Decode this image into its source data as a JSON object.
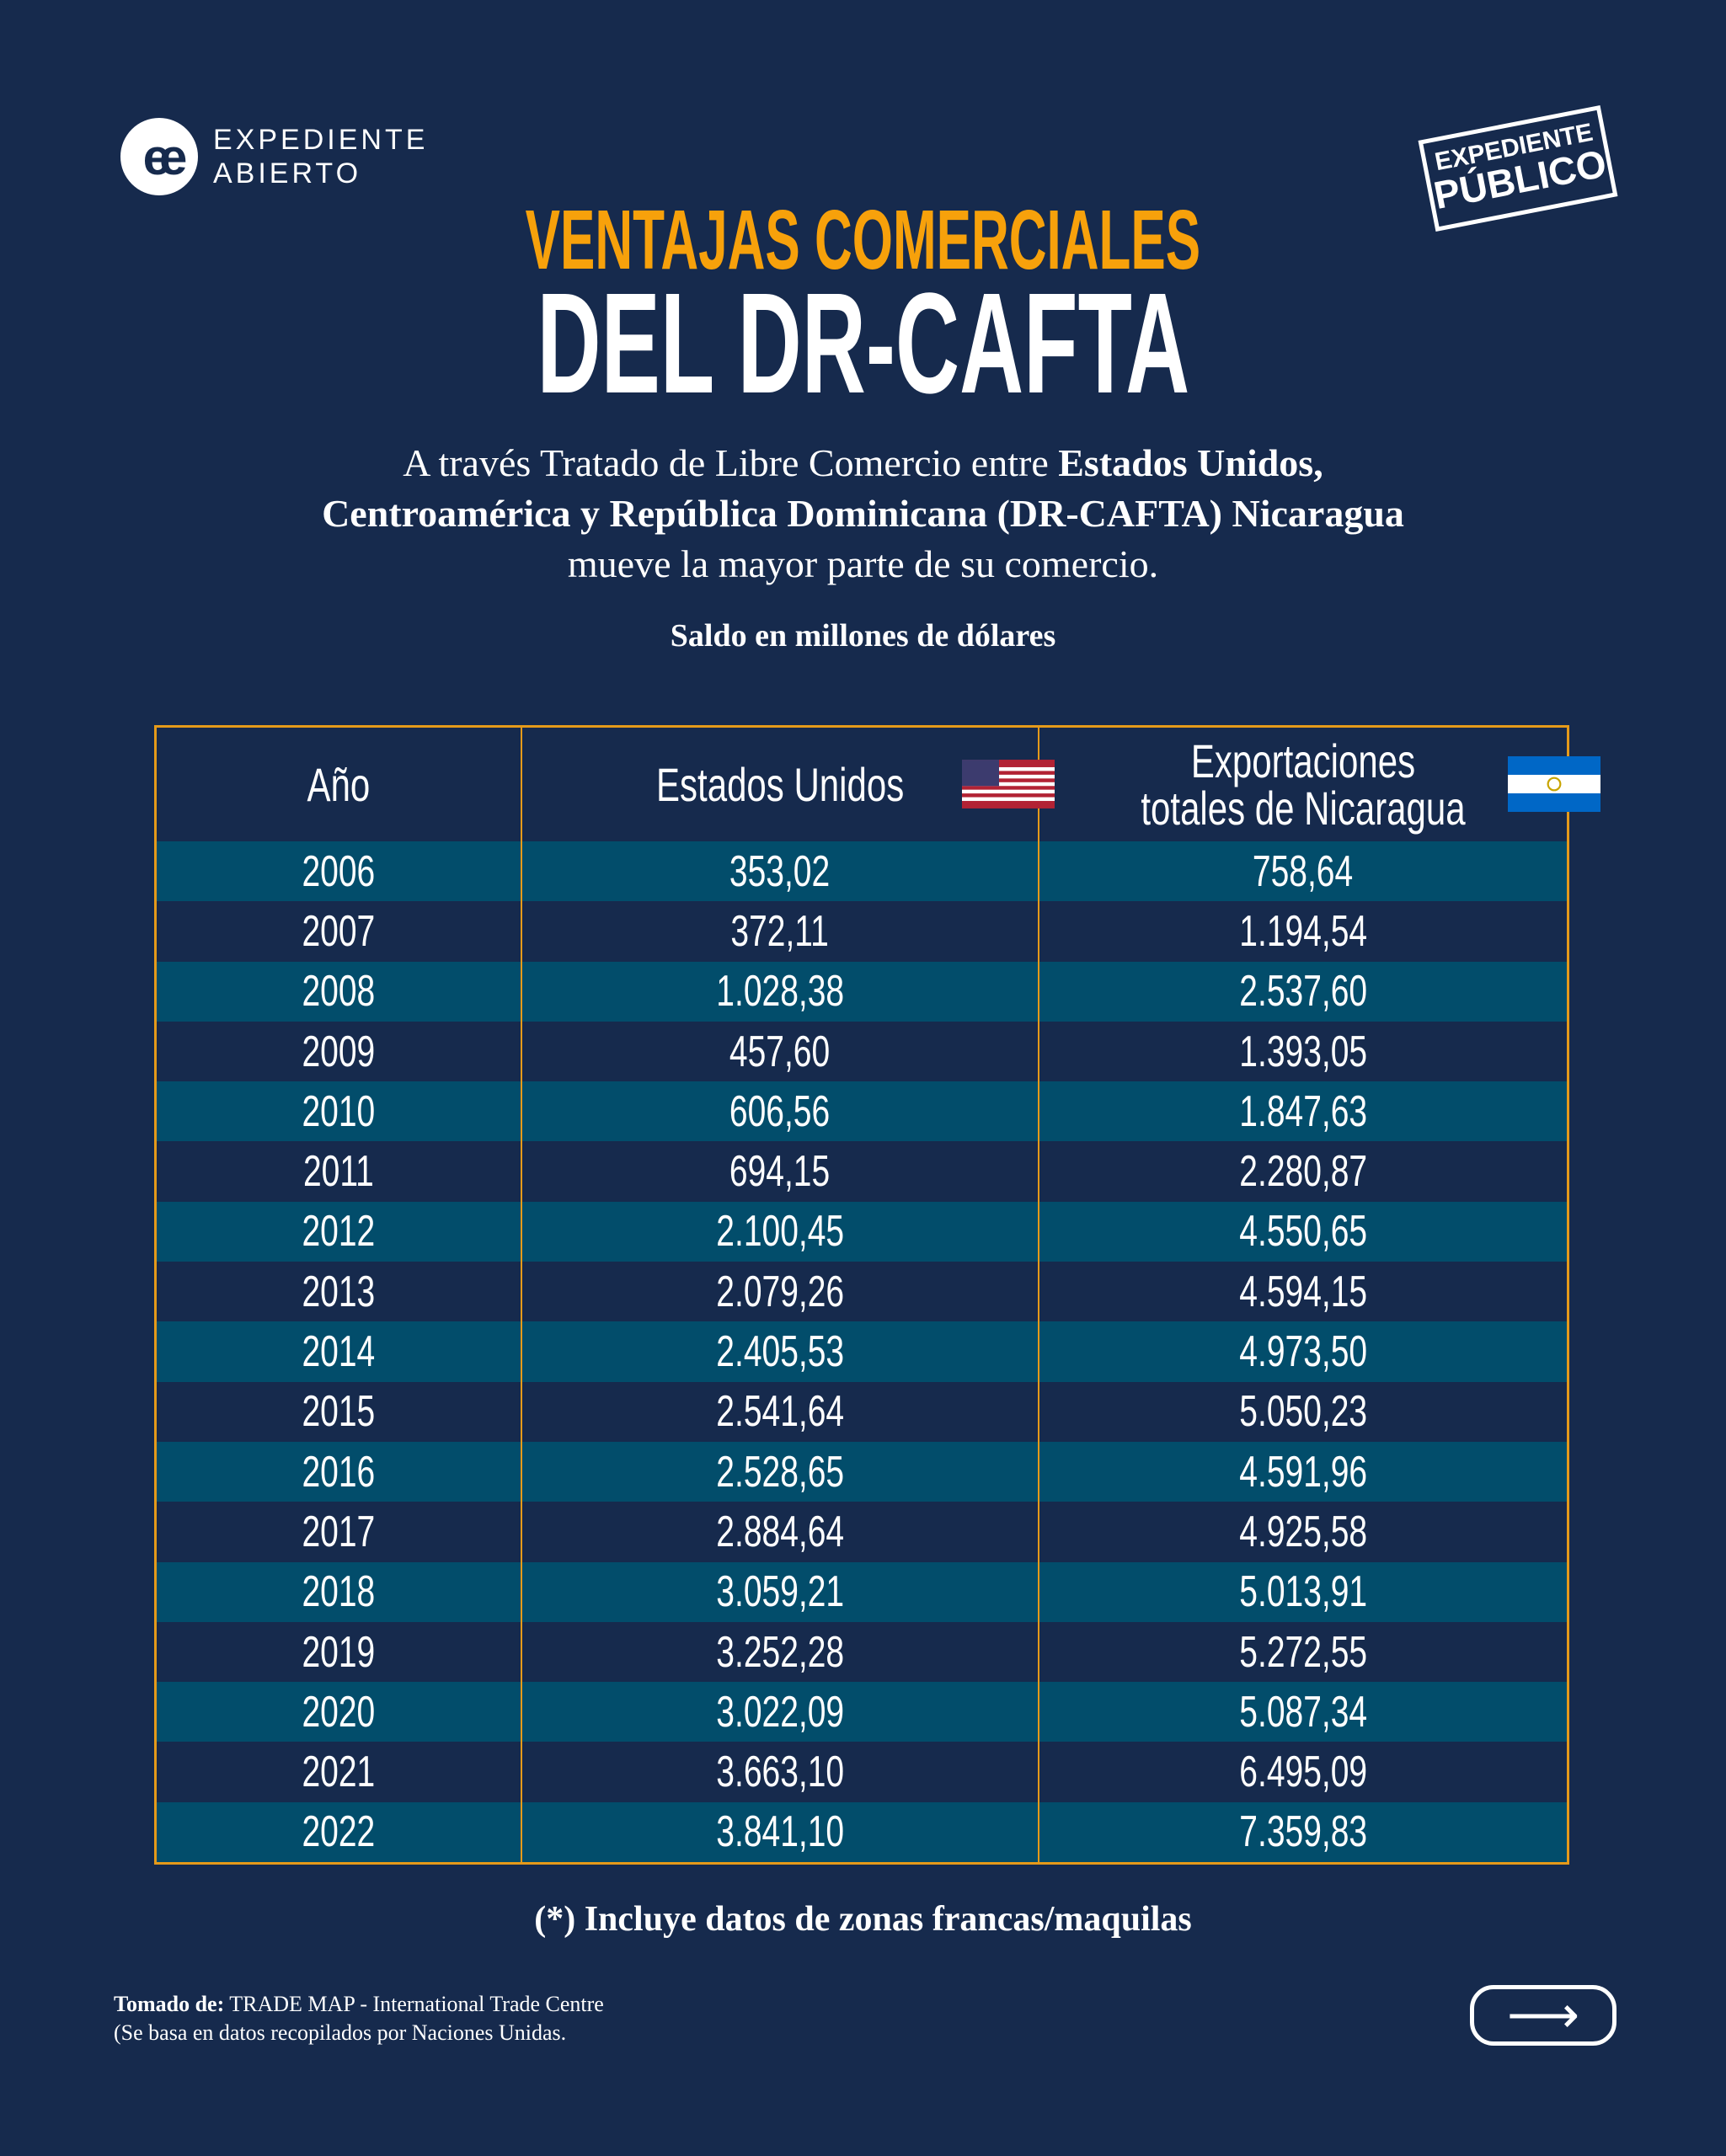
{
  "brand": {
    "logo_text_1": "EXPEDIENTE",
    "logo_text_2": "ABIERTO",
    "stamp_line_1": "EXPEDIENTE",
    "stamp_line_2": "PÚBLICO"
  },
  "title": {
    "line1": "VENTAJAS COMERCIALES",
    "line2": "DEL DR-CAFTA"
  },
  "intro": {
    "p1": "A través Tratado de Libre Comercio entre ",
    "b1": "Estados Unidos,",
    "b2": "Centroamérica y República Dominicana (DR-CAFTA) Nicaragua",
    "p2": "mueve la mayor parte de su comercio."
  },
  "unit": "Saldo en millones de dólares",
  "colors": {
    "background": "#162a4d",
    "accent": "#f7a10b",
    "row_alt": "#024d6b",
    "border": "#e59a1a"
  },
  "table": {
    "headers": [
      "Año",
      "Estados Unidos",
      "Exportaciones totales de Nicaragua"
    ],
    "header_icons": [
      "",
      "us-flag-icon",
      "nicaragua-flag-icon"
    ],
    "rows": [
      [
        "2006",
        "353,02",
        "758,64"
      ],
      [
        "2007",
        "372,11",
        "1.194,54"
      ],
      [
        "2008",
        "1.028,38",
        "2.537,60"
      ],
      [
        "2009",
        "457,60",
        "1.393,05"
      ],
      [
        "2010",
        "606,56",
        "1.847,63"
      ],
      [
        "2011",
        "694,15",
        "2.280,87"
      ],
      [
        "2012",
        "2.100,45",
        "4.550,65"
      ],
      [
        "2013",
        "2.079,26",
        "4.594,15"
      ],
      [
        "2014",
        "2.405,53",
        "4.973,50"
      ],
      [
        "2015",
        "2.541,64",
        "5.050,23"
      ],
      [
        "2016",
        "2.528,65",
        "4.591,96"
      ],
      [
        "2017",
        "2.884,64",
        "4.925,58"
      ],
      [
        "2018",
        "3.059,21",
        "5.013,91"
      ],
      [
        "2019",
        "3.252,28",
        "5.272,55"
      ],
      [
        "2020",
        "3.022,09",
        "5.087,34"
      ],
      [
        "2021",
        "3.663,10",
        "6.495,09"
      ],
      [
        "2022",
        "3.841,10",
        "7.359,83"
      ]
    ]
  },
  "note": "(*) Incluye datos de zonas francas/maquilas",
  "source": {
    "label": "Tomado de:",
    "text": " TRADE MAP - International Trade Centre",
    "line2": "(Se basa en datos recopilados por Naciones Unidas."
  },
  "next_icon": "arrow-right-icon"
}
